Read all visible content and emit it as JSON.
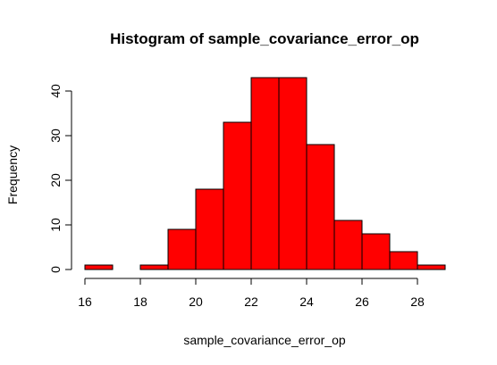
{
  "chart_data": {
    "type": "bar",
    "title": "Histogram of sample_covariance_error_op",
    "xlabel": "sample_covariance_error_op",
    "ylabel": "Frequency",
    "bin_edges": [
      16,
      17,
      18,
      19,
      20,
      21,
      22,
      23,
      24,
      25,
      26,
      27,
      28,
      29
    ],
    "values": [
      1,
      0,
      1,
      9,
      18,
      33,
      43,
      43,
      28,
      11,
      8,
      4,
      1
    ],
    "xlim": [
      16,
      29
    ],
    "ylim": [
      0,
      43
    ],
    "x_ticks": [
      16,
      18,
      20,
      22,
      24,
      26,
      28
    ],
    "y_ticks": [
      0,
      10,
      20,
      30,
      40
    ],
    "bar_color": "#ff0000",
    "edge_color": "#000000",
    "grid": false,
    "legend": "none"
  }
}
